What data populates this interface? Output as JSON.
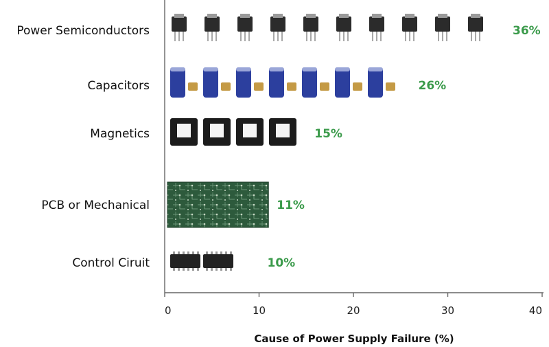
{
  "chart_data": {
    "type": "bar",
    "orientation": "horizontal",
    "categories": [
      "Power Semiconductors",
      "Capacitors",
      "Magnetics",
      "PCB or Mechanical",
      "Control Ciruit"
    ],
    "values": [
      36,
      26,
      15,
      11,
      10
    ],
    "data_labels": [
      "36%",
      "26%",
      "15%",
      "11%",
      "10%"
    ],
    "bar_fill": "component pictograms",
    "bar_icons": [
      "transistor-package-icon",
      "capacitor-icon",
      "inductor-icon",
      "circuit-board-icon",
      "ic-chip-icon"
    ],
    "xlabel": "Cause of Power Supply Failure (%)",
    "ylabel": "",
    "xlim": [
      0,
      40
    ],
    "xticks": [
      "0",
      "10",
      "20",
      "30",
      "40"
    ],
    "grid": false,
    "legend": "none",
    "colors": {
      "data_label": "#3a9a4a",
      "axis": "#666666",
      "text": "#111111"
    }
  }
}
